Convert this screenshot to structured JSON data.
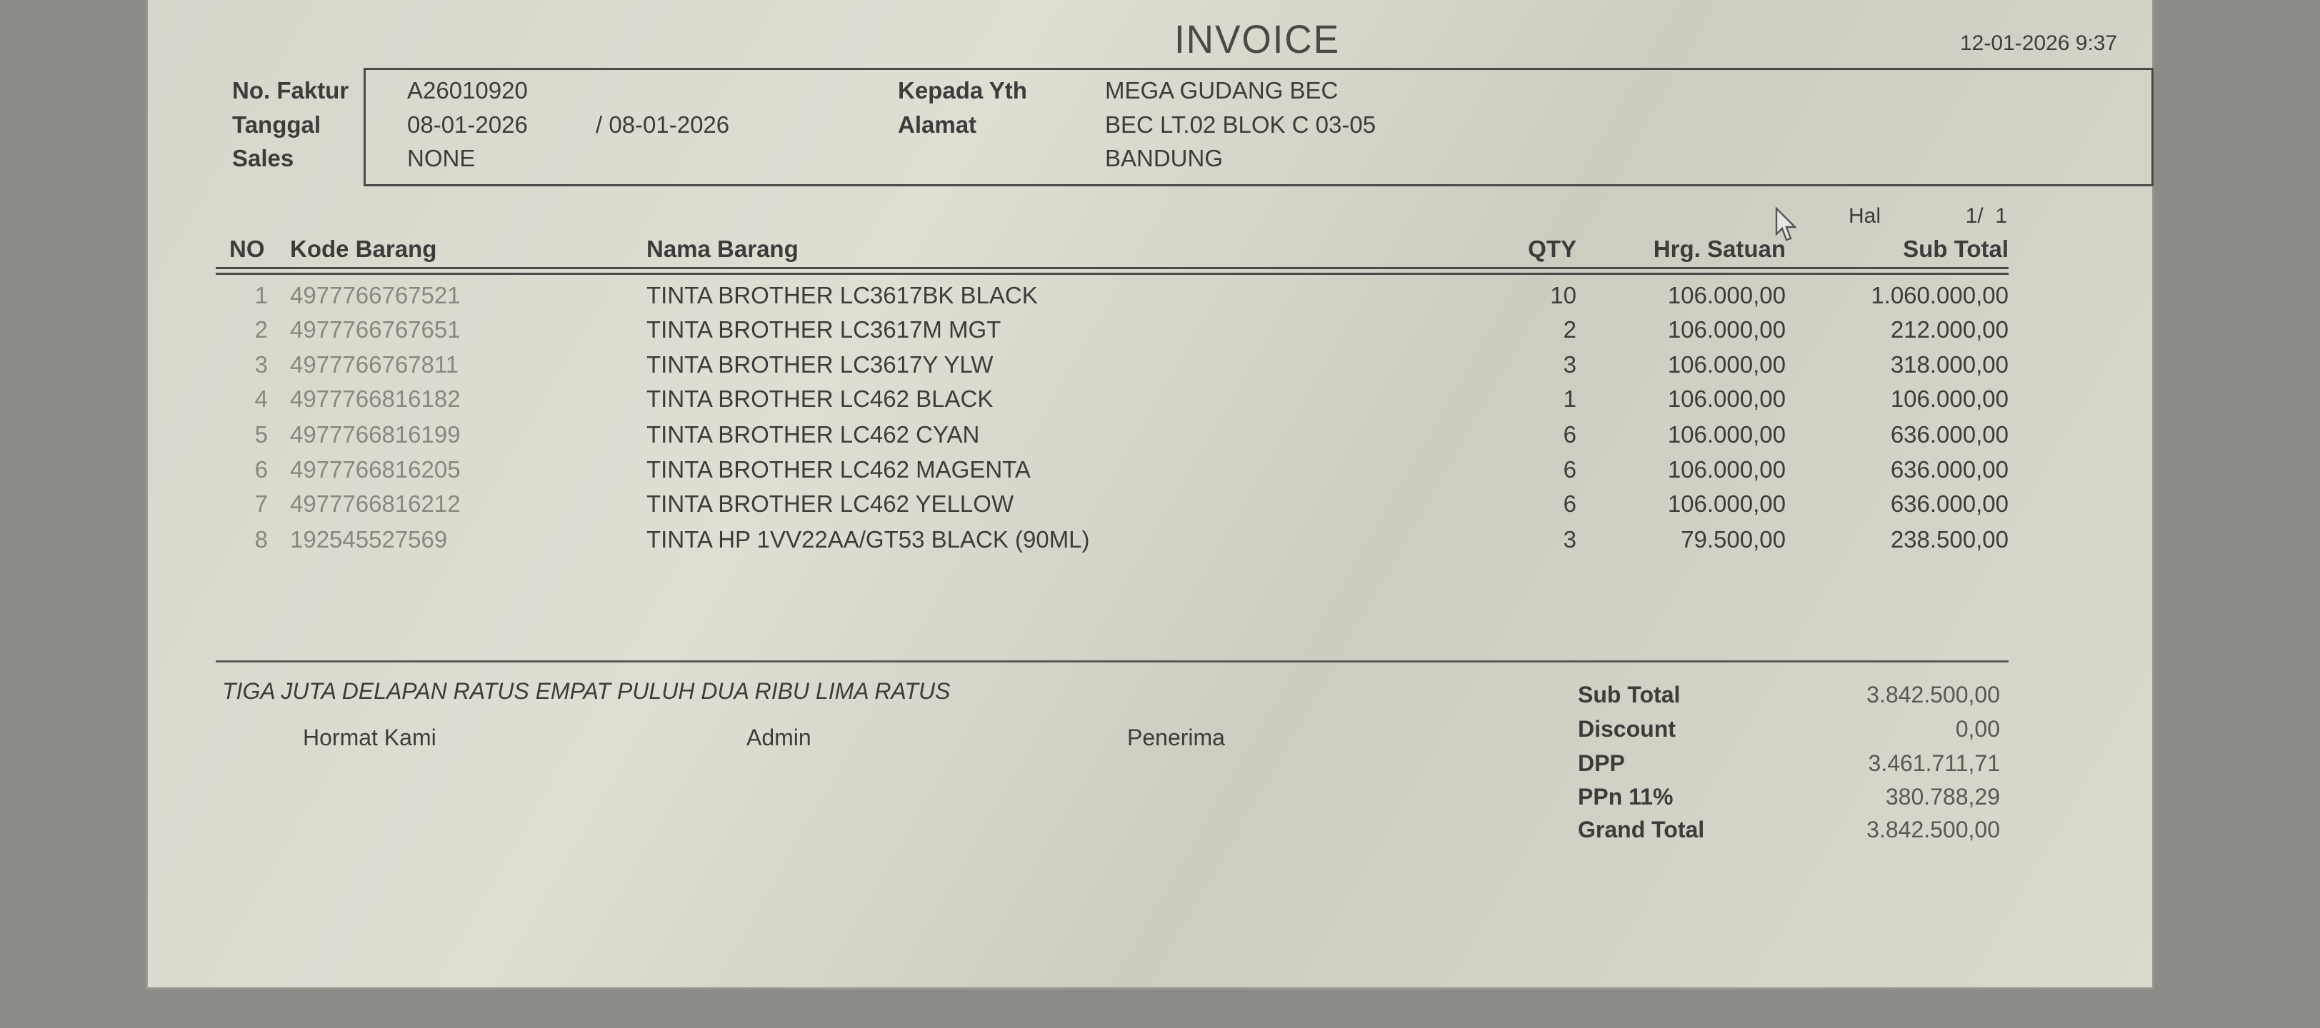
{
  "title": "INVOICE",
  "printed_at": "12-01-2026 9:37",
  "header": {
    "no_faktur_label": "No. Faktur",
    "no_faktur": "A26010920",
    "tanggal_label": "Tanggal",
    "tanggal": "08-01-2026",
    "tanggal_2": "/ 08-01-2026",
    "sales_label": "Sales",
    "sales": "NONE",
    "kepada_label": "Kepada Yth",
    "kepada": "MEGA GUDANG BEC",
    "alamat_label": "Alamat",
    "alamat_1": "BEC LT.02 BLOK C 03-05",
    "alamat_2": "BANDUNG"
  },
  "page": {
    "label": "Hal",
    "value": "1/  1"
  },
  "table": {
    "columns": [
      "NO",
      "Kode Barang",
      "Nama Barang",
      "QTY",
      "Hrg. Satuan",
      "Sub Total"
    ],
    "rows": [
      {
        "no": "1",
        "kode": "4977766767521",
        "nama": "TINTA BROTHER LC3617BK BLACK",
        "qty": "10",
        "harga": "106.000,00",
        "sub": "1.060.000,00"
      },
      {
        "no": "2",
        "kode": "4977766767651",
        "nama": "TINTA BROTHER LC3617M MGT",
        "qty": "2",
        "harga": "106.000,00",
        "sub": "212.000,00"
      },
      {
        "no": "3",
        "kode": "4977766767811",
        "nama": "TINTA BROTHER LC3617Y YLW",
        "qty": "3",
        "harga": "106.000,00",
        "sub": "318.000,00"
      },
      {
        "no": "4",
        "kode": "4977766816182",
        "nama": "TINTA BROTHER LC462 BLACK",
        "qty": "1",
        "harga": "106.000,00",
        "sub": "106.000,00"
      },
      {
        "no": "5",
        "kode": "4977766816199",
        "nama": "TINTA BROTHER LC462 CYAN",
        "qty": "6",
        "harga": "106.000,00",
        "sub": "636.000,00"
      },
      {
        "no": "6",
        "kode": "4977766816205",
        "nama": "TINTA BROTHER LC462 MAGENTA",
        "qty": "6",
        "harga": "106.000,00",
        "sub": "636.000,00"
      },
      {
        "no": "7",
        "kode": "4977766816212",
        "nama": "TINTA BROTHER LC462 YELLOW",
        "qty": "6",
        "harga": "106.000,00",
        "sub": "636.000,00"
      },
      {
        "no": "8",
        "kode": "192545527569",
        "nama": "TINTA HP  1VV22AA/GT53 BLACK (90ML)",
        "qty": "3",
        "harga": "79.500,00",
        "sub": "238.500,00"
      }
    ]
  },
  "terbilang": "TIGA JUTA DELAPAN RATUS EMPAT PULUH DUA RIBU LIMA RATUS",
  "signatures": {
    "hormat": "Hormat Kami",
    "admin": "Admin",
    "penerima": "Penerima"
  },
  "totals": [
    {
      "label": "Sub Total",
      "value": "3.842.500,00"
    },
    {
      "label": "Discount",
      "value": "0,00"
    },
    {
      "label": "DPP",
      "value": "3.461.711,71"
    },
    {
      "label": "PPn 11%",
      "value": "380.788,29"
    },
    {
      "label": "Grand Total",
      "value": "3.842.500,00"
    }
  ]
}
